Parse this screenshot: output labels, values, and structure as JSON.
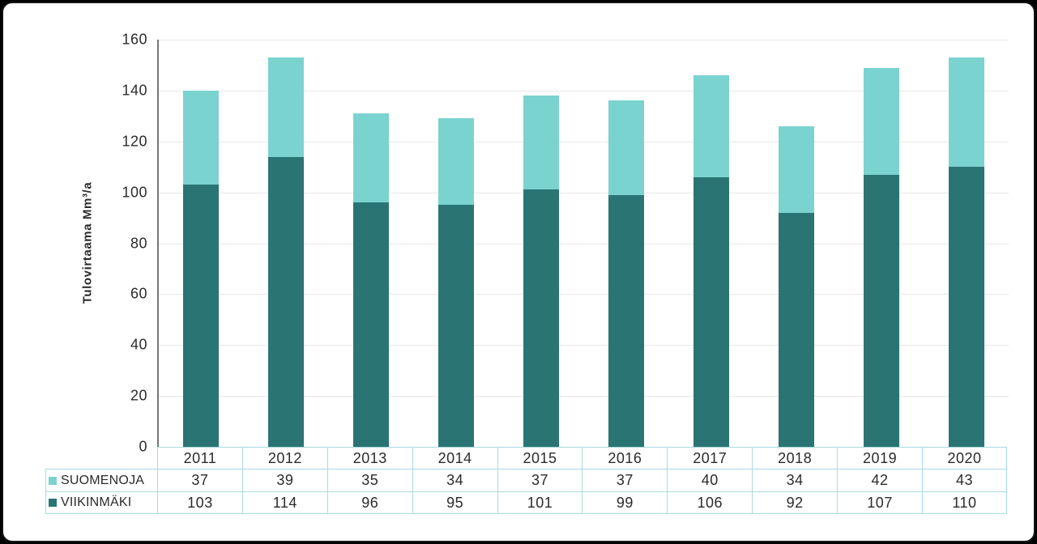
{
  "chart_data": {
    "type": "bar",
    "stacked": true,
    "title": "",
    "xlabel": "",
    "ylabel": "Tulovirtaama Mm³/a",
    "ylim": [
      0,
      160
    ],
    "yticks": [
      0,
      20,
      40,
      60,
      80,
      100,
      120,
      140,
      160
    ],
    "grid": true,
    "legend_position": "table-left",
    "categories": [
      "2011",
      "2012",
      "2013",
      "2014",
      "2015",
      "2016",
      "2017",
      "2018",
      "2019",
      "2020"
    ],
    "series": [
      {
        "name": "SUOMENOJA",
        "color": "#7bd3d0",
        "values": [
          37,
          39,
          35,
          34,
          37,
          37,
          40,
          34,
          42,
          43
        ]
      },
      {
        "name": "VIIKINMÄKI",
        "color": "#2a7574",
        "values": [
          103,
          114,
          96,
          95,
          101,
          99,
          106,
          92,
          107,
          110
        ]
      }
    ],
    "stack_order_bottom_to_top": [
      "VIIKINMÄKI",
      "SUOMENOJA"
    ]
  },
  "colors": {
    "background": "#000000",
    "card": "#ffffff",
    "gridline": "#e8e8e8",
    "axis_line": "#767676",
    "table_border": "#a9dbe0",
    "text": "#2b2b2b"
  }
}
